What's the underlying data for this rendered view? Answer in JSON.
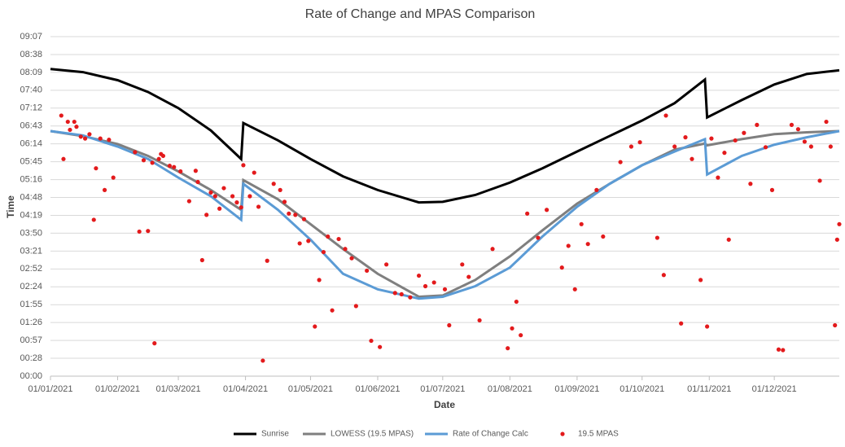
{
  "chart_data": {
    "type": "line",
    "title": "Rate of Change and MPAS Comparison",
    "x_label": "Date",
    "y_label": "Time",
    "xlim": [
      0,
      364
    ],
    "ylim": [
      0,
      547.2
    ],
    "grid": true,
    "legend": "bottom",
    "xticks": [
      {
        "value": 0,
        "label": "01/01/2021"
      },
      {
        "value": 31,
        "label": "01/02/2021"
      },
      {
        "value": 59,
        "label": "01/03/2021"
      },
      {
        "value": 90,
        "label": "01/04/2021"
      },
      {
        "value": 120,
        "label": "01/05/2021"
      },
      {
        "value": 151,
        "label": "01/06/2021"
      },
      {
        "value": 181,
        "label": "01/07/2021"
      },
      {
        "value": 212,
        "label": "01/08/2021"
      },
      {
        "value": 243,
        "label": "01/09/2021"
      },
      {
        "value": 273,
        "label": "01/10/2021"
      },
      {
        "value": 304,
        "label": "01/11/2021"
      },
      {
        "value": 334,
        "label": "01/12/2021"
      }
    ],
    "yticks": [
      {
        "value": 0,
        "label": "00:00"
      },
      {
        "value": 28.8,
        "label": "00:28"
      },
      {
        "value": 57.6,
        "label": "00:57"
      },
      {
        "value": 86.4,
        "label": "01:26"
      },
      {
        "value": 115.2,
        "label": "01:55"
      },
      {
        "value": 144,
        "label": "02:24"
      },
      {
        "value": 172.8,
        "label": "02:52"
      },
      {
        "value": 201.6,
        "label": "03:21"
      },
      {
        "value": 230.4,
        "label": "03:50"
      },
      {
        "value": 259.2,
        "label": "04:19"
      },
      {
        "value": 288,
        "label": "04:48"
      },
      {
        "value": 316.8,
        "label": "05:16"
      },
      {
        "value": 345.6,
        "label": "05:45"
      },
      {
        "value": 374.4,
        "label": "06:14"
      },
      {
        "value": 403.2,
        "label": "06:43"
      },
      {
        "value": 432,
        "label": "07:12"
      },
      {
        "value": 460.8,
        "label": "07:40"
      },
      {
        "value": 489.6,
        "label": "08:09"
      },
      {
        "value": 518.4,
        "label": "08:38"
      },
      {
        "value": 547.2,
        "label": "09:07"
      }
    ],
    "series": [
      {
        "name": "Sunrise",
        "type": "line",
        "color": "#000000",
        "width": 3,
        "x": [
          0,
          15,
          31,
          45,
          59,
          74,
          88,
          89,
          105,
          120,
          135,
          151,
          170,
          181,
          196,
          212,
          227,
          243,
          258,
          273,
          288,
          302,
          303,
          319,
          334,
          349,
          364
        ],
        "values": [
          495,
          490,
          477,
          458,
          432,
          396,
          350,
          408,
          380,
          350,
          322,
          300,
          280,
          281,
          292,
          312,
          335,
          362,
          387,
          412,
          440,
          478,
          417,
          445,
          470,
          487,
          493
        ]
      },
      {
        "name": "LOWESS (19.5 MPAS)",
        "type": "line",
        "color": "#7f7f7f",
        "width": 3,
        "x": [
          0,
          15,
          31,
          45,
          59,
          74,
          88,
          89,
          105,
          120,
          135,
          151,
          170,
          181,
          196,
          212,
          227,
          243,
          258,
          273,
          288,
          302,
          303,
          319,
          334,
          349,
          364
        ],
        "values": [
          395,
          387,
          374,
          355,
          330,
          300,
          268,
          316,
          285,
          245,
          205,
          165,
          128,
          130,
          155,
          193,
          235,
          278,
          310,
          340,
          365,
          375,
          372,
          382,
          390,
          393,
          395
        ]
      },
      {
        "name": "Rate of Change Calc",
        "type": "line",
        "color": "#5b9bd5",
        "width": 3,
        "x": [
          0,
          15,
          31,
          45,
          59,
          74,
          88,
          89,
          105,
          120,
          135,
          151,
          170,
          181,
          196,
          212,
          227,
          243,
          258,
          273,
          288,
          302,
          303,
          319,
          334,
          349,
          364
        ],
        "values": [
          395,
          388,
          370,
          350,
          320,
          290,
          252,
          310,
          268,
          220,
          165,
          140,
          125,
          128,
          145,
          175,
          225,
          273,
          310,
          340,
          362,
          382,
          325,
          355,
          373,
          385,
          395
        ]
      },
      {
        "name": "19.5 MPAS",
        "type": "scatter",
        "color": "#e31a1c",
        "x": [
          5,
          6,
          8,
          9,
          11,
          12,
          14,
          16,
          18,
          20,
          21,
          23,
          25,
          27,
          29,
          39,
          41,
          43,
          45,
          47,
          48,
          50,
          51,
          52,
          55,
          57,
          60,
          64,
          67,
          68,
          70,
          72,
          74,
          76,
          78,
          80,
          84,
          86,
          88,
          89,
          92,
          94,
          96,
          98,
          100,
          103,
          106,
          108,
          110,
          113,
          115,
          117,
          119,
          122,
          124,
          126,
          128,
          130,
          133,
          136,
          139,
          141,
          146,
          148,
          152,
          155,
          159,
          162,
          166,
          170,
          173,
          177,
          182,
          184,
          190,
          193,
          198,
          204,
          211,
          213,
          215,
          217,
          220,
          225,
          229,
          236,
          239,
          242,
          245,
          248,
          252,
          255,
          263,
          268,
          272,
          280,
          283,
          284,
          288,
          291,
          293,
          296,
          300,
          303,
          305,
          308,
          311,
          313,
          316,
          320,
          323,
          326,
          330,
          333,
          336,
          338,
          342,
          345,
          348,
          351,
          355,
          358,
          360,
          362,
          363,
          364
        ],
        "values": [
          420,
          350,
          410,
          397,
          410,
          402,
          386,
          383,
          390,
          252,
          335,
          383,
          300,
          381,
          320,
          361,
          233,
          348,
          234,
          344,
          53,
          350,
          358,
          355,
          339,
          337,
          330,
          282,
          331,
          313,
          187,
          260,
          296,
          290,
          270,
          303,
          290,
          280,
          272,
          340,
          290,
          328,
          273,
          25,
          186,
          310,
          300,
          281,
          262,
          260,
          214,
          253,
          218,
          80,
          155,
          200,
          225,
          106,
          221,
          205,
          190,
          113,
          170,
          57,
          47,
          180,
          134,
          132,
          127,
          162,
          145,
          151,
          140,
          82,
          180,
          160,
          90,
          205,
          45,
          77,
          120,
          66,
          262,
          223,
          268,
          175,
          210,
          140,
          245,
          213,
          300,
          225,
          345,
          370,
          377,
          223,
          163,
          420,
          370,
          85,
          385,
          350,
          155,
          80,
          383,
          320,
          360,
          220,
          380,
          392,
          310,
          405,
          369,
          300,
          43,
          42,
          405,
          398,
          378,
          370,
          315,
          410,
          370,
          82,
          220,
          245
        ]
      }
    ]
  }
}
